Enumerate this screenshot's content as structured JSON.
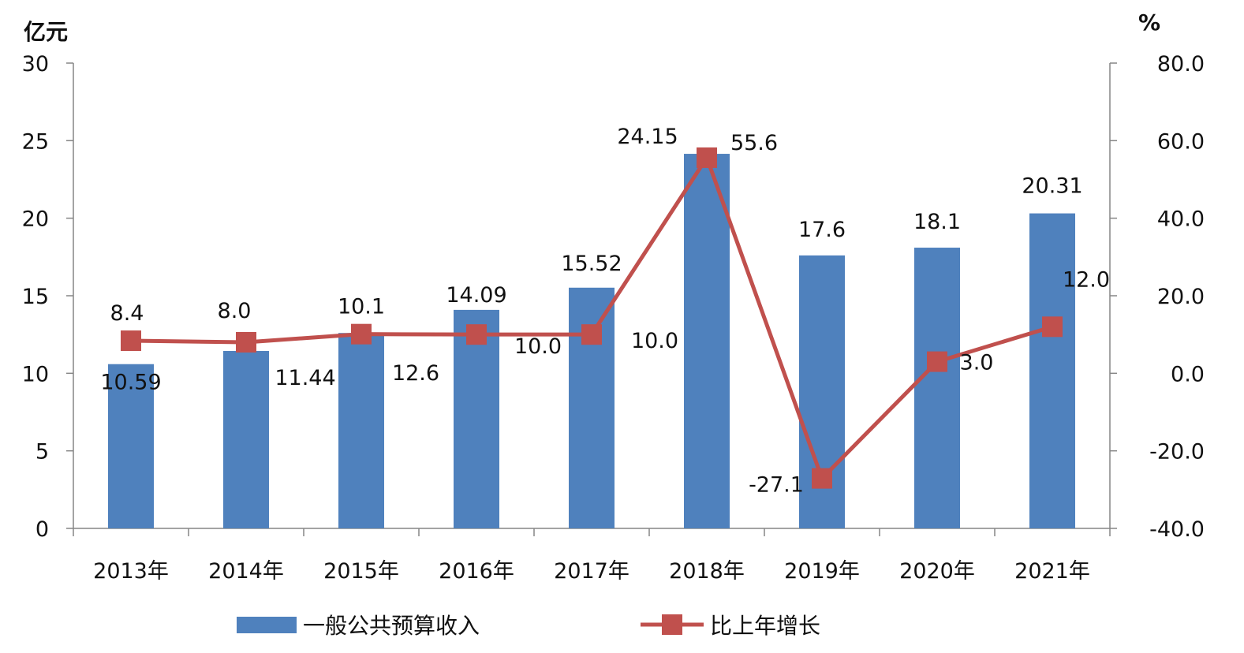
{
  "chart_data": {
    "type": "bar",
    "categories": [
      "2013年",
      "2014年",
      "2015年",
      "2016年",
      "2017年",
      "2018年",
      "2019年",
      "2020年",
      "2021年"
    ],
    "series": [
      {
        "name": "一般公共预算收入",
        "type": "bar",
        "axis": "left",
        "color": "#4f81bd",
        "values": [
          10.59,
          11.44,
          12.6,
          14.09,
          15.52,
          24.15,
          17.6,
          18.1,
          20.31
        ],
        "labels": [
          "10.59",
          "11.44",
          "12.6",
          "14.09",
          "15.52",
          "24.15",
          "17.6",
          "18.1",
          "20.31"
        ]
      },
      {
        "name": "比上年增长",
        "type": "line",
        "axis": "right",
        "color": "#c0504d",
        "values": [
          8.4,
          8.0,
          10.1,
          10.0,
          10.0,
          55.6,
          -27.1,
          3.0,
          12.0
        ],
        "labels": [
          "8.4",
          "8.0",
          "10.1",
          "10.0",
          "10.0",
          "55.6",
          "-27.1",
          "3.0",
          "12.0"
        ]
      }
    ],
    "left_axis": {
      "unit": "亿元",
      "ylim": [
        0,
        30
      ],
      "ticks": [
        "0",
        "5",
        "10",
        "15",
        "20",
        "25",
        "30"
      ]
    },
    "right_axis": {
      "unit": "%",
      "ylim": [
        -40,
        80
      ],
      "ticks": [
        "-40.0",
        "-20.0",
        "0.0",
        "20.0",
        "40.0",
        "60.0",
        "80.0"
      ]
    },
    "grid": false,
    "legend_position": "bottom"
  }
}
